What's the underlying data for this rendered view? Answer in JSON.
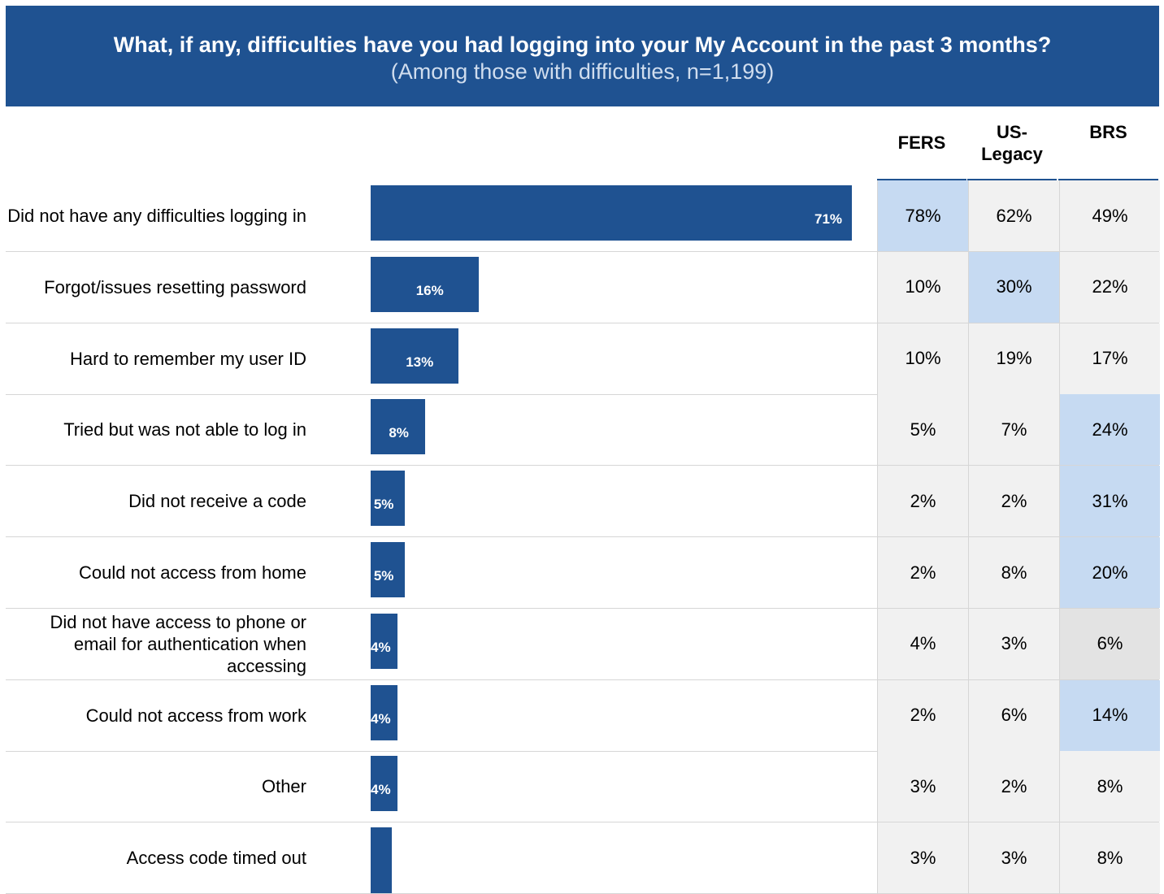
{
  "title": "What, if any, difficulties have you had logging into your My Account in the past 3 months?",
  "subtitle": "(Among those with difficulties, n=1,199)",
  "colors": {
    "bar": "#1f5291",
    "highlight": "#c6daf2",
    "cell": "#f1f1f1",
    "cell_grey": "#e3e3e3"
  },
  "columns": [
    "FERS",
    "US-\nLegacy",
    "BRS"
  ],
  "chart_data": {
    "type": "bar",
    "orientation": "horizontal",
    "categories": [
      "Did not have any difficulties logging in",
      "Forgot/issues resetting password",
      "Hard to remember my user ID",
      "Tried but was not able to log in",
      "Did not receive a code",
      "Could not access from home",
      "Did not have access to phone or email for authentication when accessing",
      "Could not access from work",
      "Other",
      "Access code timed out"
    ],
    "values": [
      71,
      16,
      13,
      8,
      5,
      5,
      4,
      4,
      4,
      3
    ],
    "labels": [
      "71%",
      "16%",
      "13%",
      "8%",
      "5%",
      "5%",
      "4%",
      "4%",
      "4%",
      ""
    ],
    "xlim": [
      0,
      100
    ],
    "grid": false,
    "legend": "none",
    "table": {
      "columns": [
        "FERS",
        "US-Legacy",
        "BRS"
      ],
      "rows": [
        [
          "78%",
          "62%",
          "49%"
        ],
        [
          "10%",
          "30%",
          "22%"
        ],
        [
          "10%",
          "19%",
          "17%"
        ],
        [
          "5%",
          "7%",
          "24%"
        ],
        [
          "2%",
          "2%",
          "31%"
        ],
        [
          "2%",
          "8%",
          "20%"
        ],
        [
          "4%",
          "3%",
          "6%"
        ],
        [
          "2%",
          "6%",
          "14%"
        ],
        [
          "3%",
          "2%",
          "8%"
        ],
        [
          "3%",
          "3%",
          "8%"
        ]
      ],
      "highlight": [
        [
          "hi",
          "",
          ""
        ],
        [
          "",
          "hi",
          ""
        ],
        [
          "",
          "",
          ""
        ],
        [
          "",
          "",
          "hi"
        ],
        [
          "",
          "",
          "hi"
        ],
        [
          "",
          "",
          "hi"
        ],
        [
          "",
          "",
          "grey"
        ],
        [
          "",
          "",
          "hi"
        ],
        [
          "",
          "",
          ""
        ],
        [
          "",
          "",
          ""
        ]
      ]
    }
  }
}
